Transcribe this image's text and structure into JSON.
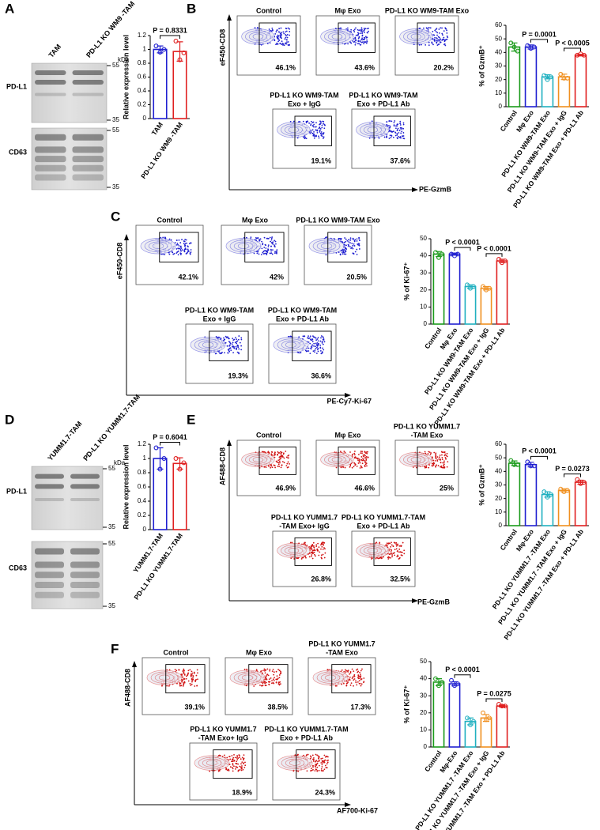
{
  "panels": [
    {
      "letter": "A",
      "blot": {
        "lanes": [
          "TAM",
          "PD-L1 KO WM9 -TAM"
        ],
        "unit": "kDa",
        "blots": [
          {
            "label": "PD-L1",
            "markers": [
              55,
              35
            ]
          },
          {
            "label": "CD63",
            "markers": [
              55,
              35
            ]
          }
        ]
      }
    },
    {
      "letter": "B",
      "flow": {
        "color": "#1f1fd0",
        "y_label": "eF450-CD8",
        "x_label": "PE-GzmB",
        "plots": [
          {
            "title": [
              "Control"
            ],
            "percent": "46.1%"
          },
          {
            "title": [
              "Mφ Exo"
            ],
            "percent": "43.6%"
          },
          {
            "title": [
              "PD-L1 KO WM9-TAM Exo"
            ],
            "percent": "20.2%"
          },
          {
            "title": [
              "PD-L1 KO WM9-TAM",
              "Exo + IgG"
            ],
            "percent": "19.1%"
          },
          {
            "title": [
              "PD-L1 KO WM9-TAM",
              "Exo + PD-L1 Ab"
            ],
            "percent": "37.6%"
          }
        ]
      }
    },
    {
      "letter": "C",
      "flow": {
        "color": "#1f1fd0",
        "y_label": "eF450-CD8",
        "x_label": "PE-Cy7-Ki-67",
        "plots": [
          {
            "title": [
              "Control"
            ],
            "percent": "42.1%"
          },
          {
            "title": [
              "Mφ Exo"
            ],
            "percent": "42%"
          },
          {
            "title": [
              "PD-L1 KO WM9-TAM Exo"
            ],
            "percent": "20.5%"
          },
          {
            "title": [
              "PD-L1 KO WM9-TAM",
              "Exo + IgG"
            ],
            "percent": "19.3%"
          },
          {
            "title": [
              "PD-L1 KO WM9-TAM",
              "Exo + PD-L1 Ab"
            ],
            "percent": "36.6%"
          }
        ]
      }
    },
    {
      "letter": "D",
      "blot": {
        "lanes": [
          "YUMM1.7-TAM",
          "PD-L1 KO YUMM1.7-TAM"
        ],
        "unit": "kDa",
        "blots": [
          {
            "label": "PD-L1",
            "markers": [
              55,
              35
            ]
          },
          {
            "label": "CD63",
            "markers": [
              55,
              35
            ]
          }
        ]
      }
    },
    {
      "letter": "E",
      "flow": {
        "color": "#d01414",
        "y_label": "AF488-CD8",
        "x_label": "PE-GzmB",
        "plots": [
          {
            "title": [
              "Control"
            ],
            "percent": "46.9%"
          },
          {
            "title": [
              "Mφ Exo"
            ],
            "percent": "46.6%"
          },
          {
            "title": [
              "PD-L1 KO YUMM1.7",
              "-TAM Exo"
            ],
            "percent": "25%"
          },
          {
            "title": [
              "PD-L1 KO YUMM1.7",
              "-TAM Exo+ IgG"
            ],
            "percent": "26.8%"
          },
          {
            "title": [
              "PD-L1 KO YUMM1.7-TAM",
              "Exo + PD-L1 Ab"
            ],
            "percent": "32.5%"
          }
        ]
      }
    },
    {
      "letter": "F",
      "flow": {
        "color": "#d01414",
        "y_label": "AF488-CD8",
        "x_label": "AF700-Ki-67",
        "plots": [
          {
            "title": [
              "Control"
            ],
            "percent": "39.1%"
          },
          {
            "title": [
              "Mφ Exo"
            ],
            "percent": "38.5%"
          },
          {
            "title": [
              "PD-L1 KO YUMM1.7",
              "-TAM Exo"
            ],
            "percent": "17.3%"
          },
          {
            "title": [
              "PD-L1 KO YUMM1.7",
              "-TAM Exo+ IgG"
            ],
            "percent": "18.9%"
          },
          {
            "title": [
              "PD-L1 KO YUMM1.7-TAM",
              "Exo + PD-L1 Ab"
            ],
            "percent": "24.3%"
          }
        ]
      }
    }
  ],
  "chart_data": [
    {
      "type": "bar",
      "ylabel": "Relative expression level",
      "categories": [
        "TAM",
        "PD-L1 KO WM9 -TAM"
      ],
      "values": [
        1.0,
        0.97
      ],
      "errors": [
        0.05,
        0.14
      ],
      "points": [
        [
          1.05,
          0.96,
          1.0
        ],
        [
          1.12,
          0.85,
          0.95
        ]
      ],
      "colors": [
        "#2020d0",
        "#e02020"
      ],
      "ylim": [
        0,
        1.2
      ],
      "yticks": [
        0,
        0.2,
        0.4,
        0.6,
        0.8,
        1.0,
        1.2
      ],
      "annotations": [
        "P = 0.8331"
      ]
    },
    {
      "type": "bar",
      "ylabel": "% of GzmB⁺",
      "categories": [
        "Control",
        "Mφ Exo",
        "PD-L1 KO WM9-TAM Exo",
        "PD-L1 KO WM9-TAM Exo + IgG",
        "PD-L1 KO WM9-TAM Exo + PD-L1 Ab"
      ],
      "values": [
        44,
        44,
        22,
        22,
        38
      ],
      "errors": [
        3,
        1.5,
        1.5,
        2,
        0.6
      ],
      "points": [
        [
          47,
          44,
          41
        ],
        [
          45,
          43,
          44
        ],
        [
          23,
          20,
          22
        ],
        [
          24,
          21,
          21
        ],
        [
          38,
          39,
          38
        ]
      ],
      "colors": [
        "#1a9a1a",
        "#2020d0",
        "#20b0c0",
        "#f09020",
        "#e02020"
      ],
      "ylim": [
        0,
        60
      ],
      "yticks": [
        0,
        10,
        20,
        30,
        40,
        50,
        60
      ],
      "annotations": [
        "P = 0.0001",
        "P < 0.0005"
      ]
    },
    {
      "type": "bar",
      "ylabel": "% of Ki-67⁺",
      "categories": [
        "Control",
        "Mφ Exo",
        "PD-L1 KO WM9-TAM Exo",
        "PD-L1 KO WM9-TAM Exo + IgG",
        "PD-L1 KO WM9-TAM Exo + PD-L1 Ab"
      ],
      "values": [
        41,
        41,
        22,
        21,
        37
      ],
      "errors": [
        1.5,
        0.6,
        1,
        1,
        1
      ],
      "points": [
        [
          42,
          39,
          41
        ],
        [
          41,
          40,
          41
        ],
        [
          23,
          21,
          22
        ],
        [
          22,
          20,
          21
        ],
        [
          38,
          36,
          37
        ]
      ],
      "colors": [
        "#1a9a1a",
        "#2020d0",
        "#20b0c0",
        "#f09020",
        "#e02020"
      ],
      "ylim": [
        0,
        50
      ],
      "yticks": [
        0,
        10,
        20,
        30,
        40,
        50
      ],
      "annotations": [
        "P < 0.0001",
        "P < 0.0001"
      ]
    },
    {
      "type": "bar",
      "ylabel": "Relative expression level",
      "categories": [
        "YUMM1.7-TAM",
        "PD-L1 KO YUMM1.7-TAM"
      ],
      "values": [
        1.0,
        0.93
      ],
      "errors": [
        0.15,
        0.08
      ],
      "points": [
        [
          1.15,
          0.85,
          1.0
        ],
        [
          1.0,
          0.85,
          0.94
        ]
      ],
      "colors": [
        "#2020d0",
        "#e02020"
      ],
      "ylim": [
        0,
        1.2
      ],
      "yticks": [
        0,
        0.2,
        0.4,
        0.6,
        0.8,
        1.0,
        1.2
      ],
      "annotations": [
        "P = 0.6041"
      ]
    },
    {
      "type": "bar",
      "ylabel": "% of GzmB⁺",
      "categories": [
        "Control",
        "Mφ-Exo",
        "PD-L1 KO YUMM1.7 -TAM Exo",
        "PD-L1 KO YUMM1.7 -TAM Exo + IgG",
        "PD-L1 KO YUMM1.7 -TAM Exo + PD-L1 Ab"
      ],
      "values": [
        46,
        45,
        23,
        26,
        32
      ],
      "errors": [
        1.7,
        1.7,
        2,
        1.2,
        1.5
      ],
      "points": [
        [
          48,
          45,
          45
        ],
        [
          47,
          44,
          44
        ],
        [
          25,
          21,
          23
        ],
        [
          27,
          25,
          26
        ],
        [
          34,
          31,
          32
        ]
      ],
      "colors": [
        "#1a9a1a",
        "#2020d0",
        "#20b0c0",
        "#f09020",
        "#e02020"
      ],
      "ylim": [
        0,
        60
      ],
      "yticks": [
        0,
        10,
        20,
        30,
        40,
        50,
        60
      ],
      "annotations": [
        "P < 0.0001",
        "P = 0.0273"
      ]
    },
    {
      "type": "bar",
      "ylabel": "% of Ki-67⁺",
      "categories": [
        "Control",
        "Mφ-Exo",
        "PD-L1 KO YUMM1.7 -TAM Exo",
        "PD-L1 KO YUMM1.7 -TAM Exo + IgG",
        "PD-L1 KO YUMM1.7 -TAM Exo + PD-L1 Ab"
      ],
      "values": [
        38,
        37,
        15,
        17,
        24
      ],
      "errors": [
        2,
        1.2,
        2,
        2,
        0.6
      ],
      "points": [
        [
          40,
          36,
          38
        ],
        [
          39,
          36,
          37
        ],
        [
          17,
          13,
          15
        ],
        [
          20,
          16,
          17
        ],
        [
          25,
          24,
          24
        ]
      ],
      "colors": [
        "#1a9a1a",
        "#2020d0",
        "#20b0c0",
        "#f09020",
        "#e02020"
      ],
      "ylim": [
        0,
        50
      ],
      "yticks": [
        0,
        10,
        20,
        30,
        40,
        50
      ],
      "annotations": [
        "P < 0.0001",
        "P = 0.0275"
      ]
    }
  ]
}
